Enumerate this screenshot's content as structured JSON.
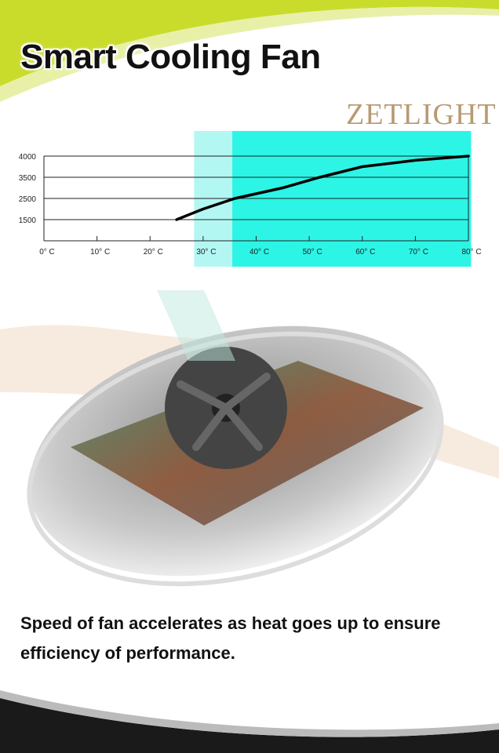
{
  "header": {
    "title": "Smart Cooling Fan",
    "brand_logo": "ZETLIGHT"
  },
  "chart_data": {
    "type": "line",
    "title": "",
    "xlabel": "",
    "ylabel": "",
    "x_tick_labels": [
      "0° C",
      "10° C",
      "20° C",
      "30° C",
      "40° C",
      "50° C",
      "60° C",
      "70° C",
      "80° C"
    ],
    "x_ticks": [
      0,
      10,
      20,
      30,
      40,
      50,
      60,
      70,
      80
    ],
    "y_tick_labels": [
      "4000",
      "3500",
      "2500",
      "1500"
    ],
    "y_ticks": [
      4000,
      3500,
      2500,
      1500
    ],
    "xlim": [
      0,
      80
    ],
    "grid": "horizontal",
    "series": [
      {
        "x": [
          25,
          30,
          36,
          45,
          52,
          60,
          70,
          80
        ],
        "y": [
          1500,
          2000,
          2500,
          3000,
          3500,
          3750,
          3900,
          4000
        ],
        "color": "#000000"
      }
    ],
    "highlight_bands": [
      {
        "x_range": [
          28.3,
          35.5
        ],
        "color": "#b3f7f3"
      },
      {
        "x_range": [
          35.5,
          80.5
        ],
        "color": "#2cf5e6"
      }
    ]
  },
  "caption": "Speed of fan accelerates as heat goes up to ensure efficiency of performance.",
  "colors": {
    "accent_top": "#c8dc2a",
    "bottom_band": "#1a1a1a"
  }
}
